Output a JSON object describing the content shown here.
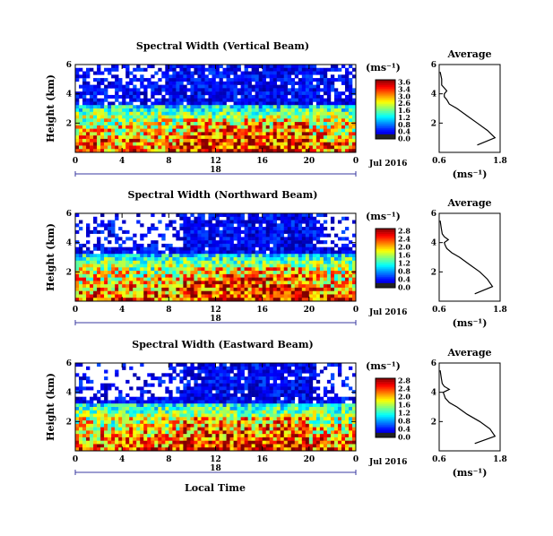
{
  "figure": {
    "xlabel": "Local Time",
    "date": "Jul 2016",
    "day": "18",
    "unit": "(ms⁻¹)",
    "profile_xlabel": "(ms⁻¹)"
  },
  "chart_data": [
    {
      "type": "heatmap",
      "title": "Spectral Width (Vertical Beam)",
      "ylabel": "Height (km)",
      "xlabel": "",
      "xlim": [
        0,
        24
      ],
      "ylim": [
        0,
        6
      ],
      "xticks": [
        "0",
        "4",
        "8",
        "12",
        "16",
        "20",
        "0"
      ],
      "yticks": [
        "6",
        "4",
        "2"
      ],
      "colorbar": {
        "label": "(ms⁻¹)",
        "range": [
          0,
          3.6
        ],
        "ticks": [
          "3.6",
          "3.4",
          "3.0",
          "2.6",
          "1.6",
          "1.2",
          "0.8",
          "0.4",
          "0.0"
        ]
      },
      "description_profile": {
        "title": "Average",
        "xlim": [
          0.6,
          1.8
        ],
        "xticks": [
          "0.6",
          "1.8"
        ],
        "ylim": [
          0,
          6
        ],
        "yticks": [
          "6",
          "4",
          "2"
        ],
        "height_km": [
          0.5,
          1.0,
          1.5,
          2.0,
          2.5,
          3.0,
          3.3,
          3.6,
          3.8,
          4.0,
          4.2,
          4.4,
          4.6,
          5.0,
          5.5
        ],
        "width": [
          1.35,
          1.7,
          1.55,
          1.35,
          1.15,
          0.95,
          0.8,
          0.75,
          0.7,
          0.7,
          0.75,
          0.7,
          0.65,
          0.65,
          0.62
        ]
      }
    },
    {
      "type": "heatmap",
      "title": "Spectral Width (Northward Beam)",
      "ylabel": "Height (km)",
      "xlabel": "",
      "xlim": [
        0,
        24
      ],
      "ylim": [
        0,
        6
      ],
      "xticks": [
        "0",
        "4",
        "8",
        "12",
        "16",
        "20",
        "0"
      ],
      "yticks": [
        "6",
        "4",
        "2"
      ],
      "colorbar": {
        "label": "(ms⁻¹)",
        "range": [
          0,
          2.8
        ],
        "ticks": [
          "2.8",
          "2.4",
          "2.0",
          "1.6",
          "1.2",
          "0.8",
          "0.4",
          "0.0"
        ]
      },
      "description_profile": {
        "title": "Average",
        "xlim": [
          0.6,
          1.8
        ],
        "xticks": [
          "0.6",
          "1.8"
        ],
        "ylim": [
          0,
          6
        ],
        "yticks": [
          "6",
          "4",
          "2"
        ],
        "height_km": [
          0.5,
          1.0,
          1.5,
          2.0,
          2.5,
          3.0,
          3.3,
          3.6,
          3.8,
          4.0,
          4.2,
          4.4,
          4.6,
          5.0,
          5.5
        ],
        "width": [
          1.3,
          1.65,
          1.55,
          1.4,
          1.2,
          1.0,
          0.85,
          0.75,
          0.72,
          0.7,
          0.78,
          0.7,
          0.66,
          0.64,
          0.62
        ]
      }
    },
    {
      "type": "heatmap",
      "title": "Spectral Width (Eastward Beam)",
      "ylabel": "Height (km)",
      "xlabel": "Local Time",
      "xlim": [
        0,
        24
      ],
      "ylim": [
        0,
        6
      ],
      "xticks": [
        "0",
        "4",
        "8",
        "12",
        "16",
        "20",
        "0"
      ],
      "yticks": [
        "6",
        "4",
        "2"
      ],
      "colorbar": {
        "label": "(ms⁻¹)",
        "range": [
          0,
          2.8
        ],
        "ticks": [
          "2.8",
          "2.4",
          "2.0",
          "1.6",
          "1.2",
          "0.8",
          "0.4",
          "0.0"
        ]
      },
      "description_profile": {
        "title": "Average",
        "xlim": [
          0.6,
          1.8
        ],
        "xticks": [
          "0.6",
          "1.8"
        ],
        "ylim": [
          0,
          6
        ],
        "yticks": [
          "6",
          "4",
          "2"
        ],
        "height_km": [
          0.5,
          1.0,
          1.5,
          2.0,
          2.5,
          3.0,
          3.3,
          3.6,
          3.8,
          4.0,
          4.2,
          4.4,
          4.6,
          5.0,
          5.5
        ],
        "width": [
          1.3,
          1.7,
          1.6,
          1.4,
          1.15,
          0.95,
          0.8,
          0.72,
          0.7,
          0.68,
          0.8,
          0.7,
          0.66,
          0.64,
          0.62
        ]
      }
    }
  ]
}
